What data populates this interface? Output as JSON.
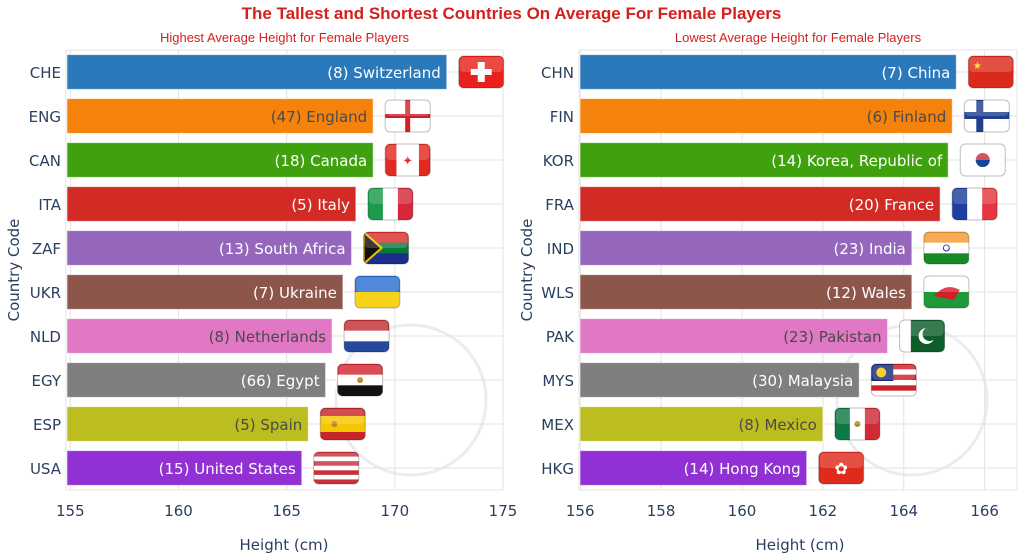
{
  "title": "The Tallest and Shortest Countries On Average For Female Players",
  "chart_data": [
    {
      "type": "bar",
      "orientation": "horizontal",
      "title": "Highest Average Height for Female Players",
      "xlabel": "Height (cm)",
      "ylabel": "Country Code",
      "xlim": [
        154.8,
        175
      ],
      "xticks": [
        155,
        160,
        165,
        170,
        175
      ],
      "grid": true,
      "categories": [
        "CHE",
        "ENG",
        "CAN",
        "ITA",
        "ZAF",
        "UKR",
        "NLD",
        "EGY",
        "ESP",
        "USA"
      ],
      "values": [
        172.4,
        169.0,
        169.0,
        168.2,
        168.0,
        167.6,
        167.1,
        166.8,
        166.0,
        165.7
      ],
      "labels": [
        "(8) Switzerland",
        "(47) England",
        "(18) Canada",
        "(5) Italy",
        "(13) South Africa",
        "(7) Ukraine",
        "(8) Netherlands",
        "(66) Egypt",
        "(5) Spain",
        "(15) United States"
      ],
      "counts": [
        8,
        47,
        18,
        5,
        13,
        7,
        8,
        66,
        5,
        15
      ],
      "flags": [
        "flag-che",
        "flag-eng",
        "flag-can",
        "flag-ita",
        "flag-zaf",
        "flag-ukr",
        "flag-nld",
        "flag-egy",
        "flag-esp",
        "flag-usa"
      ]
    },
    {
      "type": "bar",
      "orientation": "horizontal",
      "title": "Lowest Average Height for Female Players",
      "xlabel": "Height (cm)",
      "ylabel": "Country Code",
      "xlim": [
        155.97,
        166.8
      ],
      "xticks": [
        156,
        158,
        160,
        162,
        164,
        166
      ],
      "grid": true,
      "categories": [
        "CHN",
        "FIN",
        "KOR",
        "FRA",
        "IND",
        "WLS",
        "PAK",
        "MYS",
        "MEX",
        "HKG"
      ],
      "values": [
        165.3,
        165.2,
        165.1,
        164.9,
        164.2,
        164.2,
        163.6,
        162.9,
        162.0,
        161.6
      ],
      "labels": [
        "(7) China",
        "(6) Finland",
        "(14) Korea, Republic of",
        "(20) France",
        "(23) India",
        "(12) Wales",
        "(23) Pakistan",
        "(30) Malaysia",
        "(8) Mexico",
        "(14) Hong Kong"
      ],
      "counts": [
        7,
        6,
        14,
        20,
        23,
        12,
        23,
        30,
        8,
        14
      ],
      "flags": [
        "flag-chn",
        "flag-fin",
        "flag-kor",
        "flag-fra",
        "flag-ind",
        "flag-wls",
        "flag-pak",
        "flag-mys",
        "flag-mex",
        "flag-hkg"
      ]
    }
  ],
  "colors": [
    "#2b78bb",
    "#f5820a",
    "#3ea10d",
    "#d22b26",
    "#9467bd",
    "#8c564b",
    "#e078c6",
    "#7f7f7f",
    "#bcbd21",
    "#9130d3"
  ],
  "axis_color": "#2a3f5f",
  "title_color": "#d3201d"
}
